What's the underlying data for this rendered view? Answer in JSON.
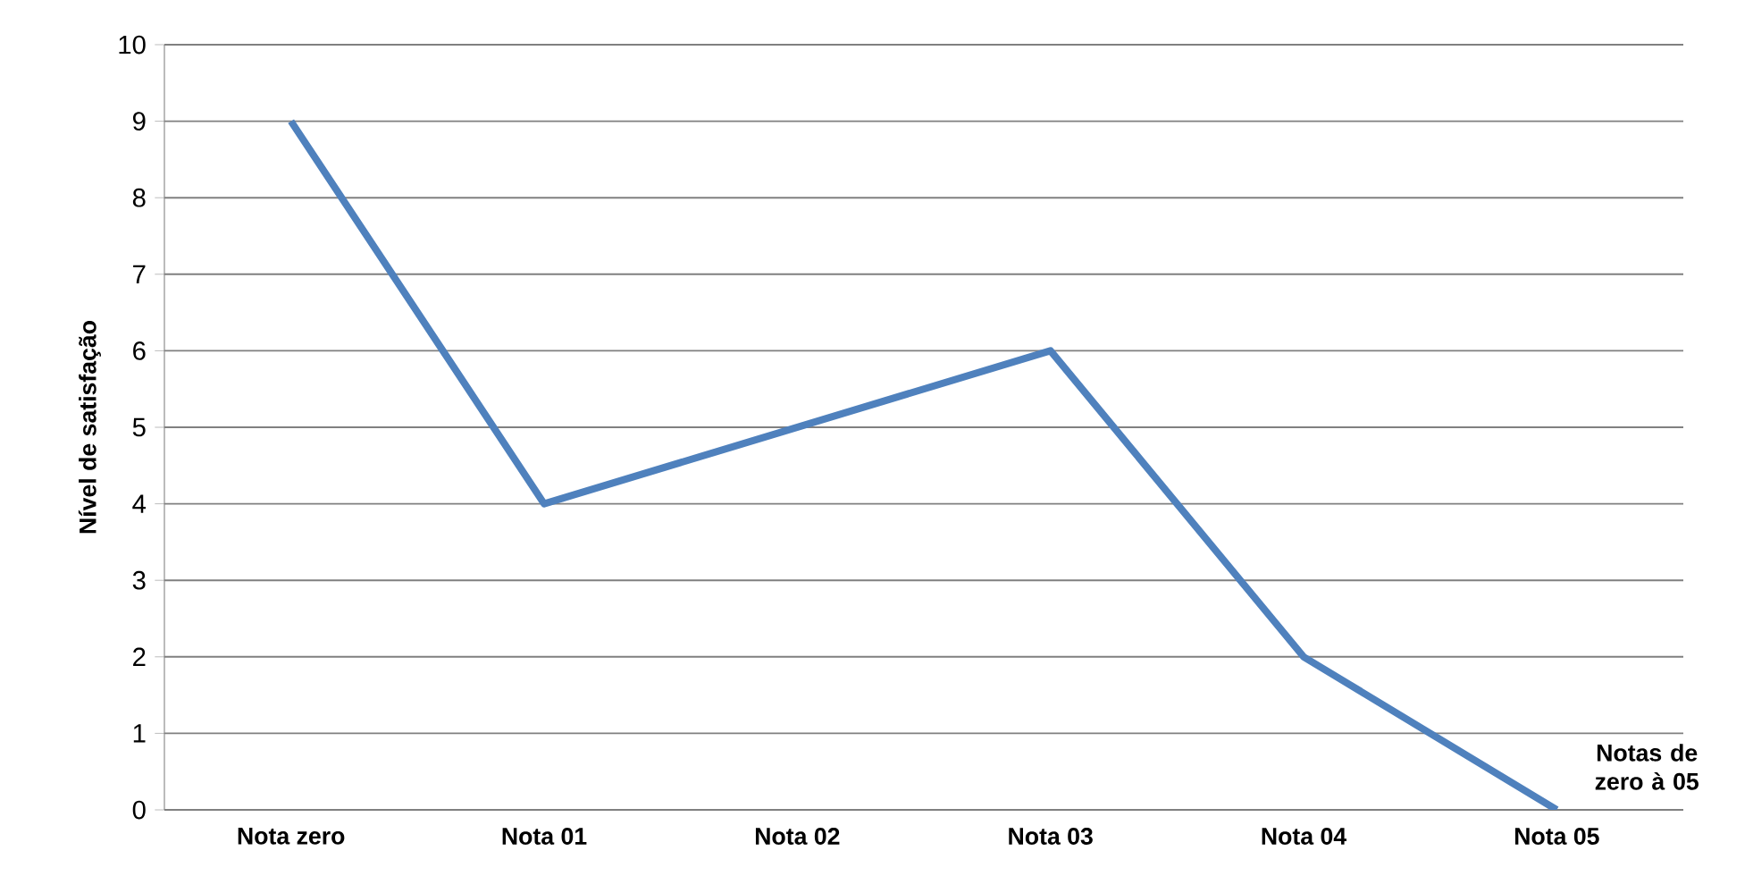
{
  "chart_data": {
    "type": "line",
    "xlabel": "Notas de zero à 05",
    "ylabel": "Nível de satisfação",
    "categories": [
      "Nota zero",
      "Nota 01",
      "Nota 02",
      "Nota 03",
      "Nota 04",
      "Nota 05"
    ],
    "values": [
      9,
      4,
      5,
      6,
      2,
      0
    ],
    "color": "#4f81bd",
    "ylim": [
      0,
      10
    ],
    "yticks": [
      0,
      1,
      2,
      3,
      4,
      5,
      6,
      7,
      8,
      9,
      10
    ],
    "grid": "y"
  }
}
